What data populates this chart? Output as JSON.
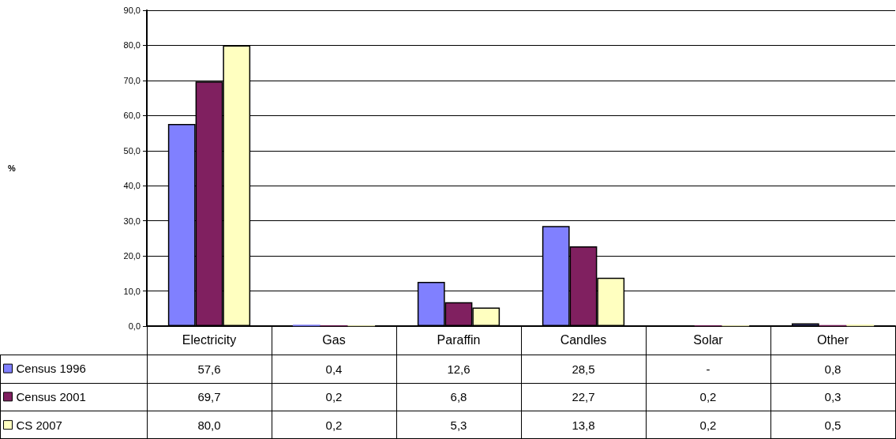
{
  "chart_data": {
    "type": "bar",
    "annotations": [
      "%"
    ],
    "categories": [
      "Electricity",
      "Gas",
      "Paraffin",
      "Candles",
      "Solar",
      "Other"
    ],
    "series": [
      {
        "name": "Census 1996",
        "color": "#8080ff",
        "values": [
          57.6,
          0.4,
          12.6,
          28.5,
          null,
          0.8
        ],
        "value_labels": [
          "57,6",
          "0,4",
          "12,6",
          "28,5",
          "-",
          "0,8"
        ]
      },
      {
        "name": "Census 2001",
        "color": "#802060",
        "values": [
          69.7,
          0.2,
          6.8,
          22.7,
          0.2,
          0.3
        ],
        "value_labels": [
          "69,7",
          "0,2",
          "6,8",
          "22,7",
          "0,2",
          "0,3"
        ]
      },
      {
        "name": "CS 2007",
        "color": "#ffffc0",
        "values": [
          80.0,
          0.2,
          5.3,
          13.8,
          0.2,
          0.5
        ],
        "value_labels": [
          "80,0",
          "0,2",
          "5,3",
          "13,8",
          "0,2",
          "0,5"
        ]
      }
    ],
    "ylim": [
      0,
      90
    ],
    "yticks": [
      {
        "value": 0,
        "label": "0,0"
      },
      {
        "value": 10,
        "label": "10,0"
      },
      {
        "value": 20,
        "label": "20,0"
      },
      {
        "value": 30,
        "label": "30,0"
      },
      {
        "value": 40,
        "label": "40,0"
      },
      {
        "value": 50,
        "label": "50,0"
      },
      {
        "value": 60,
        "label": "60,0"
      },
      {
        "value": 70,
        "label": "70,0"
      },
      {
        "value": 80,
        "label": "80,0"
      },
      {
        "value": 90,
        "label": "90,0"
      }
    ],
    "grid": "y",
    "legend": "bottom left"
  }
}
